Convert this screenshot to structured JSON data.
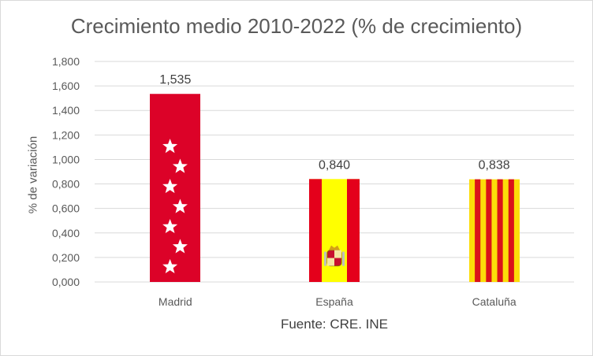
{
  "chart_data": {
    "type": "bar",
    "title": "Crecimiento medio 2010-2022 (% de crecimiento)",
    "ylabel": "% de variación",
    "xlabel": "",
    "categories": [
      "Madrid",
      "España",
      "Cataluña"
    ],
    "values": [
      1.535,
      0.84,
      0.838
    ],
    "data_labels": [
      "1,535",
      "0,840",
      "0,838"
    ],
    "ylim": [
      0,
      1.8
    ],
    "yticks": [
      0,
      0.2,
      0.4,
      0.6,
      0.8,
      1.0,
      1.2,
      1.4,
      1.6,
      1.8
    ],
    "ytick_labels": [
      "0,000",
      "0,200",
      "0,400",
      "0,600",
      "0,800",
      "1,000",
      "1,200",
      "1,400",
      "1,600",
      "1,800"
    ],
    "grid": true,
    "legend": "none",
    "bar_styles": [
      "madrid-flag",
      "spain-flag",
      "catalonia-flag"
    ],
    "colors": {
      "madrid_red": "#dc0228",
      "spain_red": "#e4001b",
      "spain_yellow": "#ffff00",
      "catalonia_red": "#da121a",
      "catalonia_yellow": "#fcdd09",
      "star_white": "#ffffff",
      "gridline": "#d9d9d9"
    },
    "source": "Fuente: CRE. INE"
  }
}
